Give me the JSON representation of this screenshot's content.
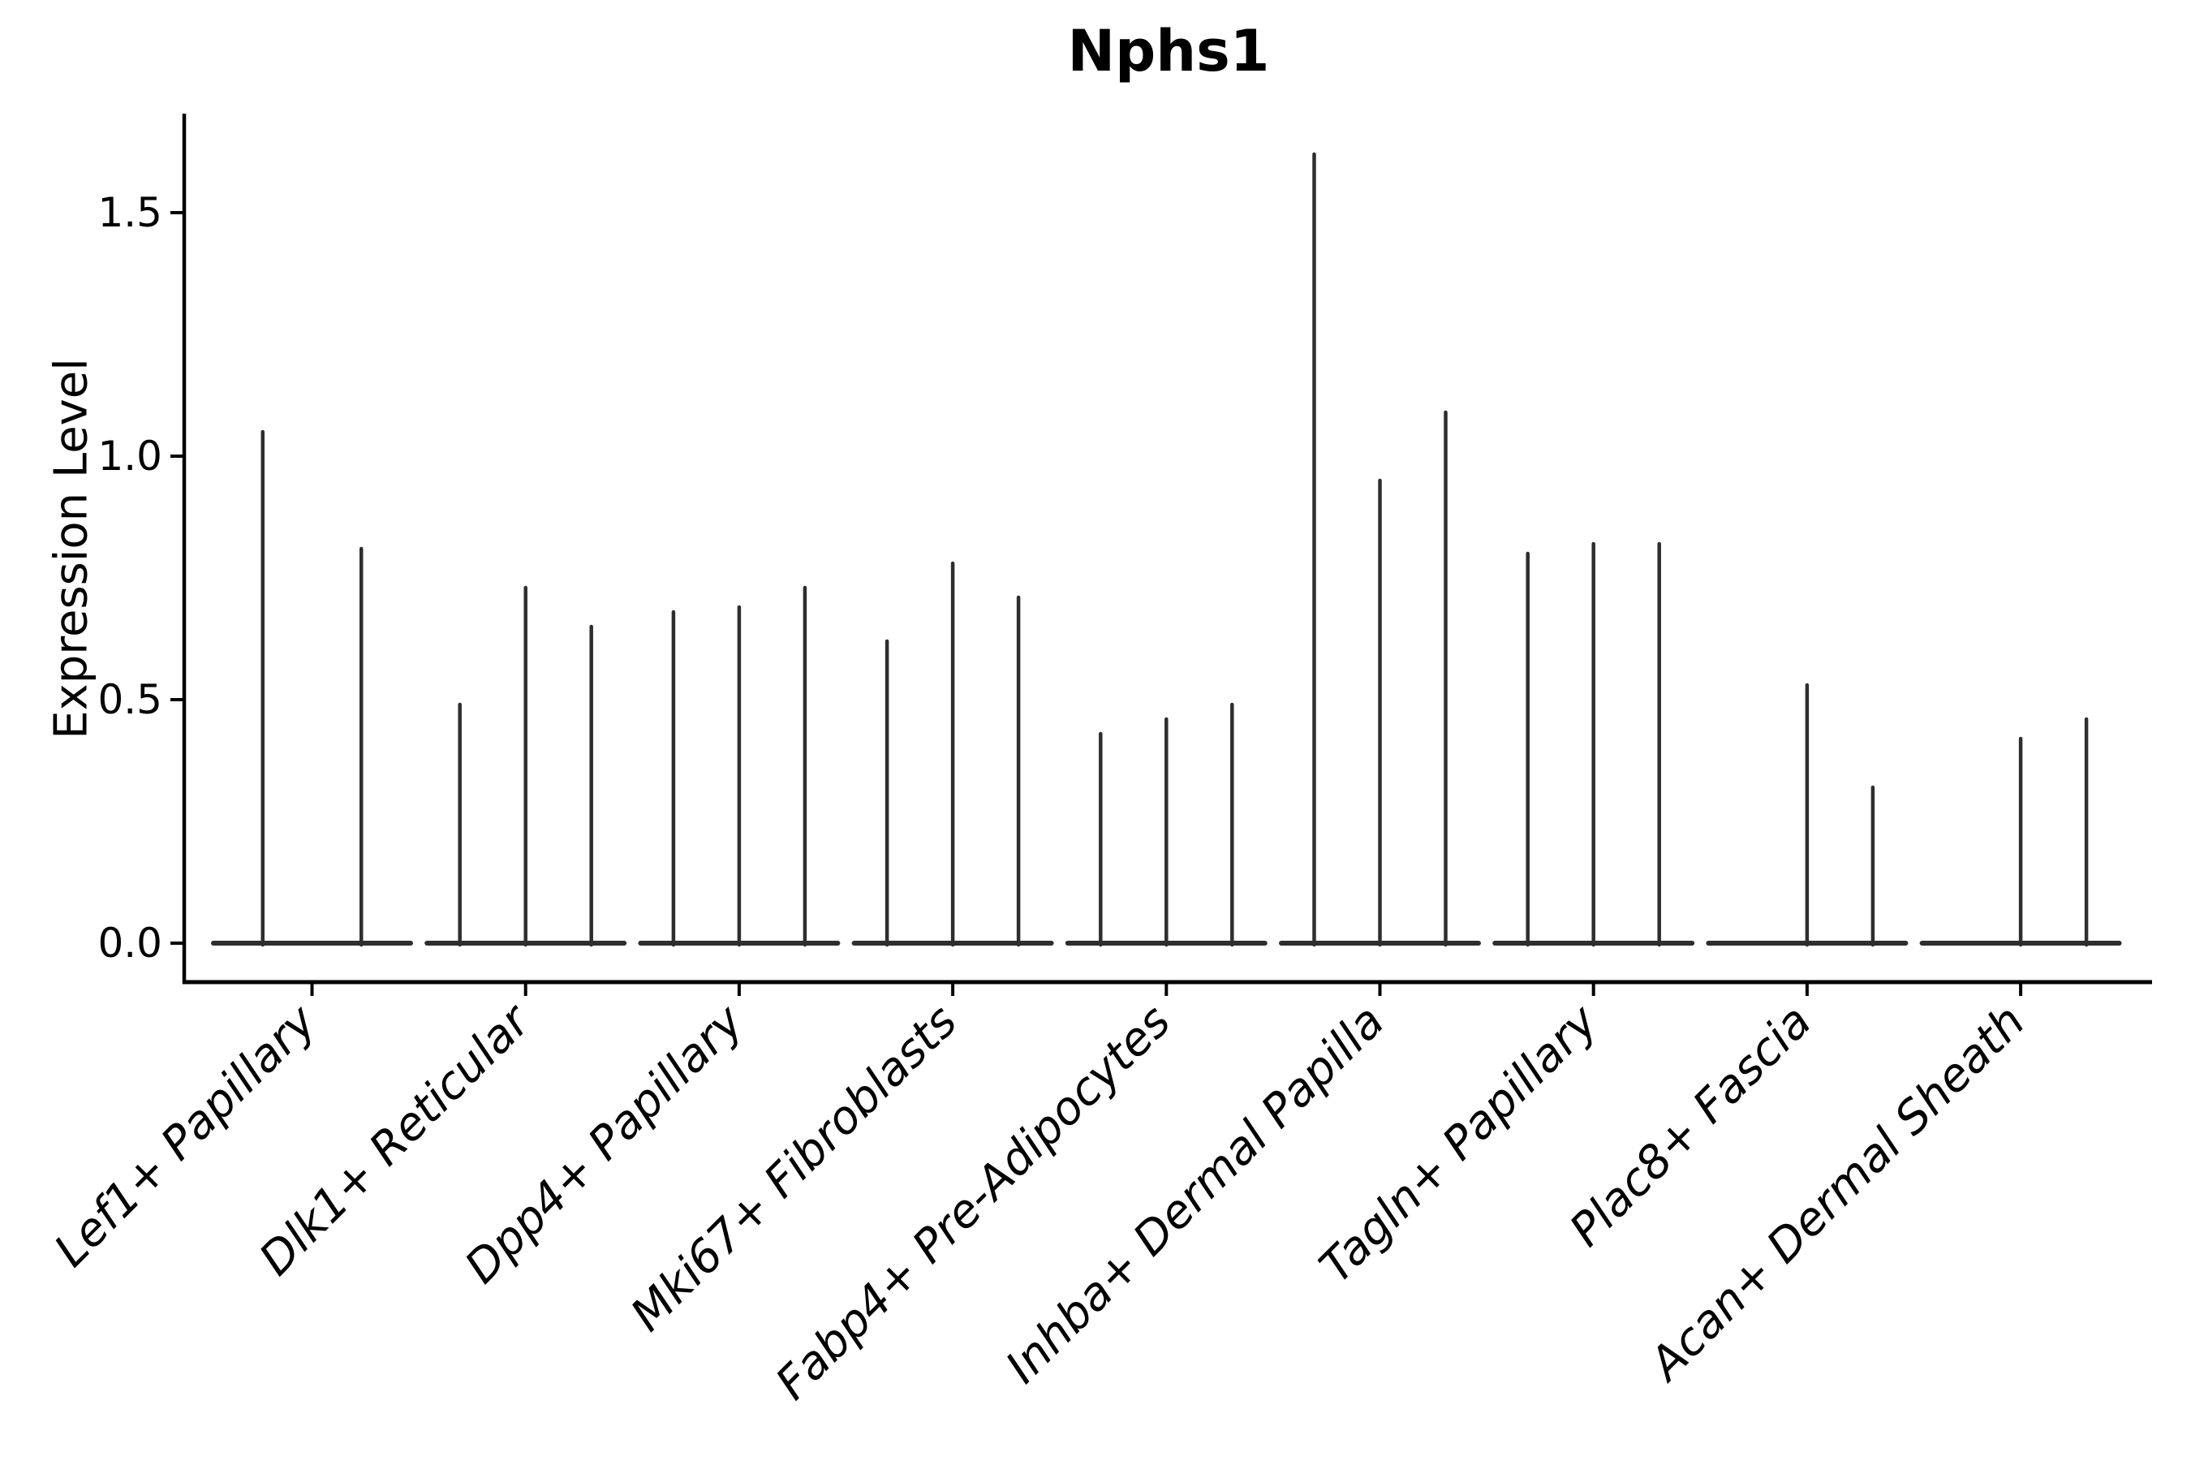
{
  "figure": {
    "background": "#ffffff"
  },
  "chart_data": {
    "type": "violin",
    "title": "Nphs1",
    "ylabel": "Expression Level",
    "xlabel": "",
    "grid": false,
    "legend": null,
    "ylim": [
      0,
      1.7
    ],
    "yticks": [
      0.0,
      0.5,
      1.0,
      1.5
    ],
    "ytick_labels": [
      "0.0",
      "0.5",
      "1.0",
      "1.5"
    ],
    "x_tick_rotation_deg": 45,
    "categories": [
      "Lef1+ Papillary",
      "Dlk1+ Reticular",
      "Dpp4+ Papillary",
      "Mki67+ Fibroblasts",
      "Fabp4+ Pre-Adipocytes",
      "Inhba+ Dermal Papilla",
      "Tagln+ Papillary",
      "Plac8+ Fascia",
      "Acan+ Dermal Sheath"
    ],
    "series_note": "Each category holds thin spike-violins; value = peak Expression Level of each violin spike, 0 = flat violin at baseline with no spike",
    "values": [
      [
        1.05,
        0.81
      ],
      [
        0.49,
        0.73,
        0.65
      ],
      [
        0.68,
        0.69,
        0.73
      ],
      [
        0.62,
        0.78,
        0.71
      ],
      [
        0.43,
        0.46,
        0.49
      ],
      [
        1.62,
        0.95,
        1.09
      ],
      [
        0.8,
        0.82,
        0.82
      ],
      [
        0.0,
        0.53,
        0.32
      ],
      [
        0.0,
        0.42,
        0.46
      ]
    ],
    "colors": {
      "violin_line": "#2e2e2e",
      "axis": "#000000",
      "text": "#000000",
      "background": "#ffffff"
    }
  }
}
